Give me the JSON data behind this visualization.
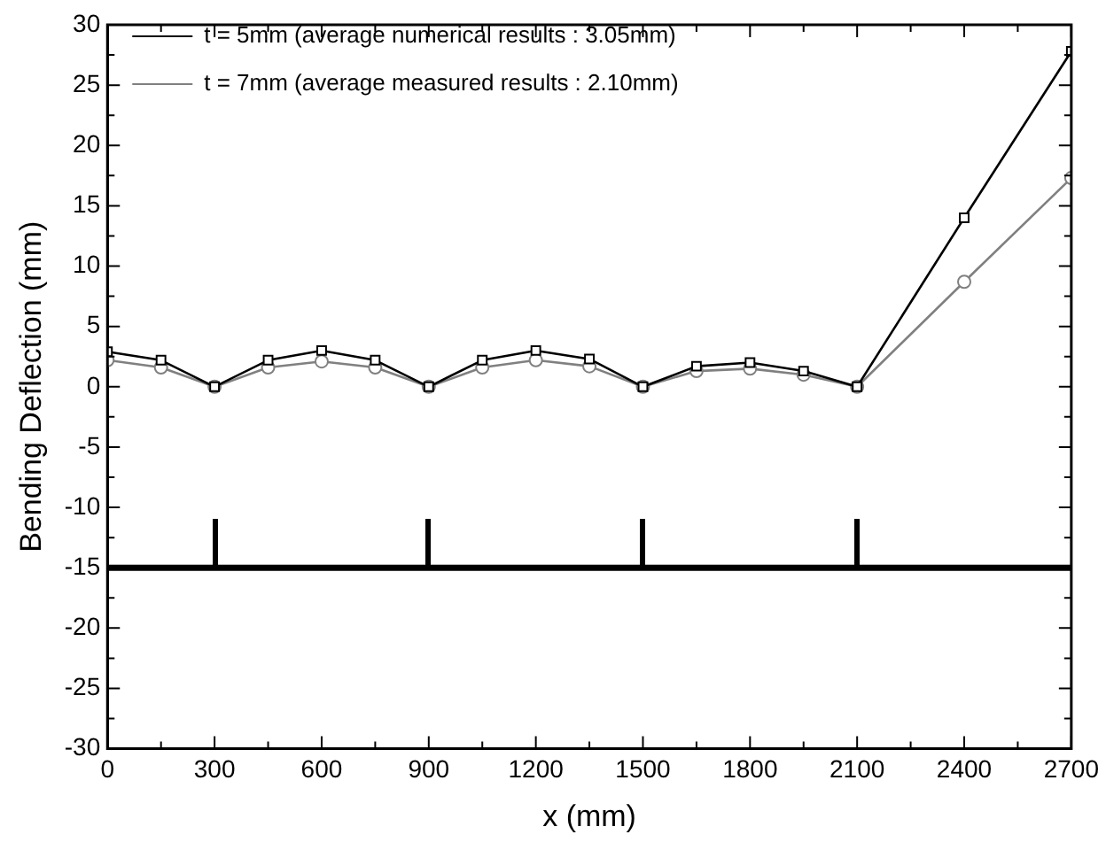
{
  "chart_data": {
    "type": "line",
    "xlabel": "x (mm)",
    "ylabel": "Bending Deflection (mm)",
    "x": [
      0,
      150,
      300,
      450,
      600,
      750,
      900,
      1050,
      1200,
      1350,
      1500,
      1650,
      1800,
      1950,
      2100,
      2400,
      2700
    ],
    "series": [
      {
        "name": "t = 5mm (average numerical results : 3.05mm)",
        "color": "#000000",
        "marker": "square",
        "values": [
          2.9,
          2.2,
          0,
          2.2,
          3.0,
          2.2,
          0,
          2.2,
          3.0,
          2.3,
          0,
          1.7,
          2.0,
          1.3,
          0,
          14,
          27.8
        ]
      },
      {
        "name": "t = 7mm (average measured results : 2.10mm)",
        "color": "#808080",
        "marker": "circle",
        "values": [
          2.2,
          1.6,
          0,
          1.6,
          2.1,
          1.6,
          0,
          1.6,
          2.2,
          1.7,
          0,
          1.3,
          1.5,
          1.0,
          0,
          8.7,
          17.3
        ]
      }
    ],
    "xlim": [
      0,
      2700
    ],
    "xticks": [
      0,
      {
        "value": 150,
        "label": null
      },
      300,
      {
        "value": 450,
        "label": null
      },
      600,
      {
        "value": 750,
        "label": null
      },
      900,
      {
        "value": 1050,
        "label": null
      },
      1200,
      {
        "value": 1350,
        "label": null
      },
      1500,
      {
        "value": 1650,
        "label": null
      },
      1800,
      {
        "value": 1950,
        "label": null
      },
      2100,
      {
        "value": 2250,
        "label": null
      },
      2400,
      {
        "value": 2550,
        "label": null
      },
      2700
    ],
    "ylim": [
      -30,
      30
    ],
    "yticks": [
      -30,
      {
        "value": -27.5,
        "label": null
      },
      -25,
      {
        "value": -22.5,
        "label": null
      },
      -20,
      {
        "value": -17.5,
        "label": null
      },
      -15,
      {
        "value": -12.5,
        "label": null
      },
      -10,
      {
        "value": -7.5,
        "label": null
      },
      -5,
      {
        "value": -2.5,
        "label": null
      },
      0,
      {
        "value": 2.5,
        "label": null
      },
      5,
      {
        "value": 7.5,
        "label": null
      },
      10,
      {
        "value": 12.5,
        "label": null
      },
      15,
      {
        "value": 17.5,
        "label": null
      },
      20,
      {
        "value": 22.5,
        "label": null
      },
      25,
      {
        "value": 27.5,
        "label": null
      },
      30
    ],
    "ref_lines": [
      {
        "axis": "y",
        "value": -15,
        "color": "#000000"
      }
    ],
    "grid": false,
    "legend": "top left",
    "line_style": "solid"
  }
}
